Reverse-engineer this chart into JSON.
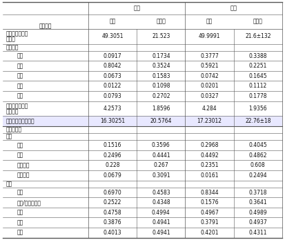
{
  "title": "",
  "col_groups": [
    "女山",
    "男山"
  ],
  "col_headers": [
    "均値",
    "标准差",
    "均値",
    "标准差"
  ],
  "row_label_col": "人口特征",
  "rows": [
    {
      "label": "平均年龄（岁）\n标准差",
      "vals": [
        "49.3051",
        "21.523",
        "49.9991",
        "21.6±132"
      ],
      "indent": 0,
      "bold": false
    },
    {
      "label": "婚姻状况",
      "vals": [
        "",
        "",
        "",
        ""
      ],
      "indent": 0,
      "bold": false,
      "header": true
    },
    {
      "label": "已婚",
      "vals": [
        "0.0917",
        "0.1734",
        "0.3777",
        "0.3388"
      ],
      "indent": 1,
      "bold": false
    },
    {
      "label": "未婚",
      "vals": [
        "0.8042",
        "0.3524",
        "0.5921",
        "0.2251"
      ],
      "indent": 1,
      "bold": false
    },
    {
      "label": "离婚",
      "vals": [
        "0.0673",
        "0.1583",
        "0.0742",
        "0.1645"
      ],
      "indent": 1,
      "bold": false
    },
    {
      "label": "丧偶",
      "vals": [
        "0.0122",
        "0.1098",
        "0.0201",
        "0.1112"
      ],
      "indent": 1,
      "bold": false
    },
    {
      "label": "大山",
      "vals": [
        "0.0793",
        "0.2702",
        "0.0327",
        "0.1778"
      ],
      "indent": 1,
      "bold": false
    },
    {
      "label": "家庭规模（人）\n社区特征",
      "vals": [
        "4.2573",
        "1.8596",
        "4.284",
        "1.9356"
      ],
      "indent": 0,
      "bold": false
    },
    {
      "label": "人均家庭收入（元）",
      "vals": [
        "16.30251",
        "20.5764",
        "17.23012",
        "22.76±18"
      ],
      "indent": 0,
      "bold": false,
      "highlight": true
    },
    {
      "label": "居住地特征",
      "vals": [
        "",
        "",
        "",
        ""
      ],
      "indent": 0,
      "bold": false,
      "header": true
    },
    {
      "label": "地区",
      "vals": [
        "",
        "",
        "",
        ""
      ],
      "indent": 0,
      "bold": false,
      "subheader": true
    },
    {
      "label": "小城",
      "vals": [
        "0.1516",
        "0.3596",
        "0.2968",
        "0.4045"
      ],
      "indent": 1,
      "bold": false
    },
    {
      "label": "城市",
      "vals": [
        "0.2496",
        "0.4441",
        "0.4492",
        "0.4862"
      ],
      "indent": 1,
      "bold": false
    },
    {
      "label": "农口地区",
      "vals": [
        "0.228",
        "0.267",
        "0.2351",
        "0.608"
      ],
      "indent": 1,
      "bold": false
    },
    {
      "label": "其他地区",
      "vals": [
        "0.0679",
        "0.3091",
        "0.0161",
        "0.2494"
      ],
      "indent": 1,
      "bold": false
    },
    {
      "label": "就业",
      "vals": [
        "",
        "",
        "",
        ""
      ],
      "indent": 0,
      "bold": false,
      "subheader": true
    },
    {
      "label": "在职",
      "vals": [
        "0.6970",
        "0.4583",
        "0.8344",
        "0.3718"
      ],
      "indent": 1,
      "bold": false
    },
    {
      "label": "失业/内力人口层",
      "vals": [
        "0.2522",
        "0.4348",
        "0.1576",
        "0.3641"
      ],
      "indent": 1,
      "bold": false
    },
    {
      "label": "退休",
      "vals": [
        "0.4758",
        "0.4994",
        "0.4967",
        "0.4989"
      ],
      "indent": 1,
      "bold": false
    },
    {
      "label": "学生",
      "vals": [
        "0.3876",
        "0.4941",
        "0.3791",
        "0.4937"
      ],
      "indent": 1,
      "bold": false
    },
    {
      "label": "其他",
      "vals": [
        "0.4013",
        "0.4941",
        "0.4201",
        "0.4311"
      ],
      "indent": 1,
      "bold": false
    }
  ],
  "font_size": 5.5,
  "header_font_size": 6.0,
  "bg_color": "#ffffff",
  "header_bg": "#f0f0f0",
  "highlight_bg": "#e8e8ff",
  "line_color": "#555555",
  "text_color": "#111111"
}
